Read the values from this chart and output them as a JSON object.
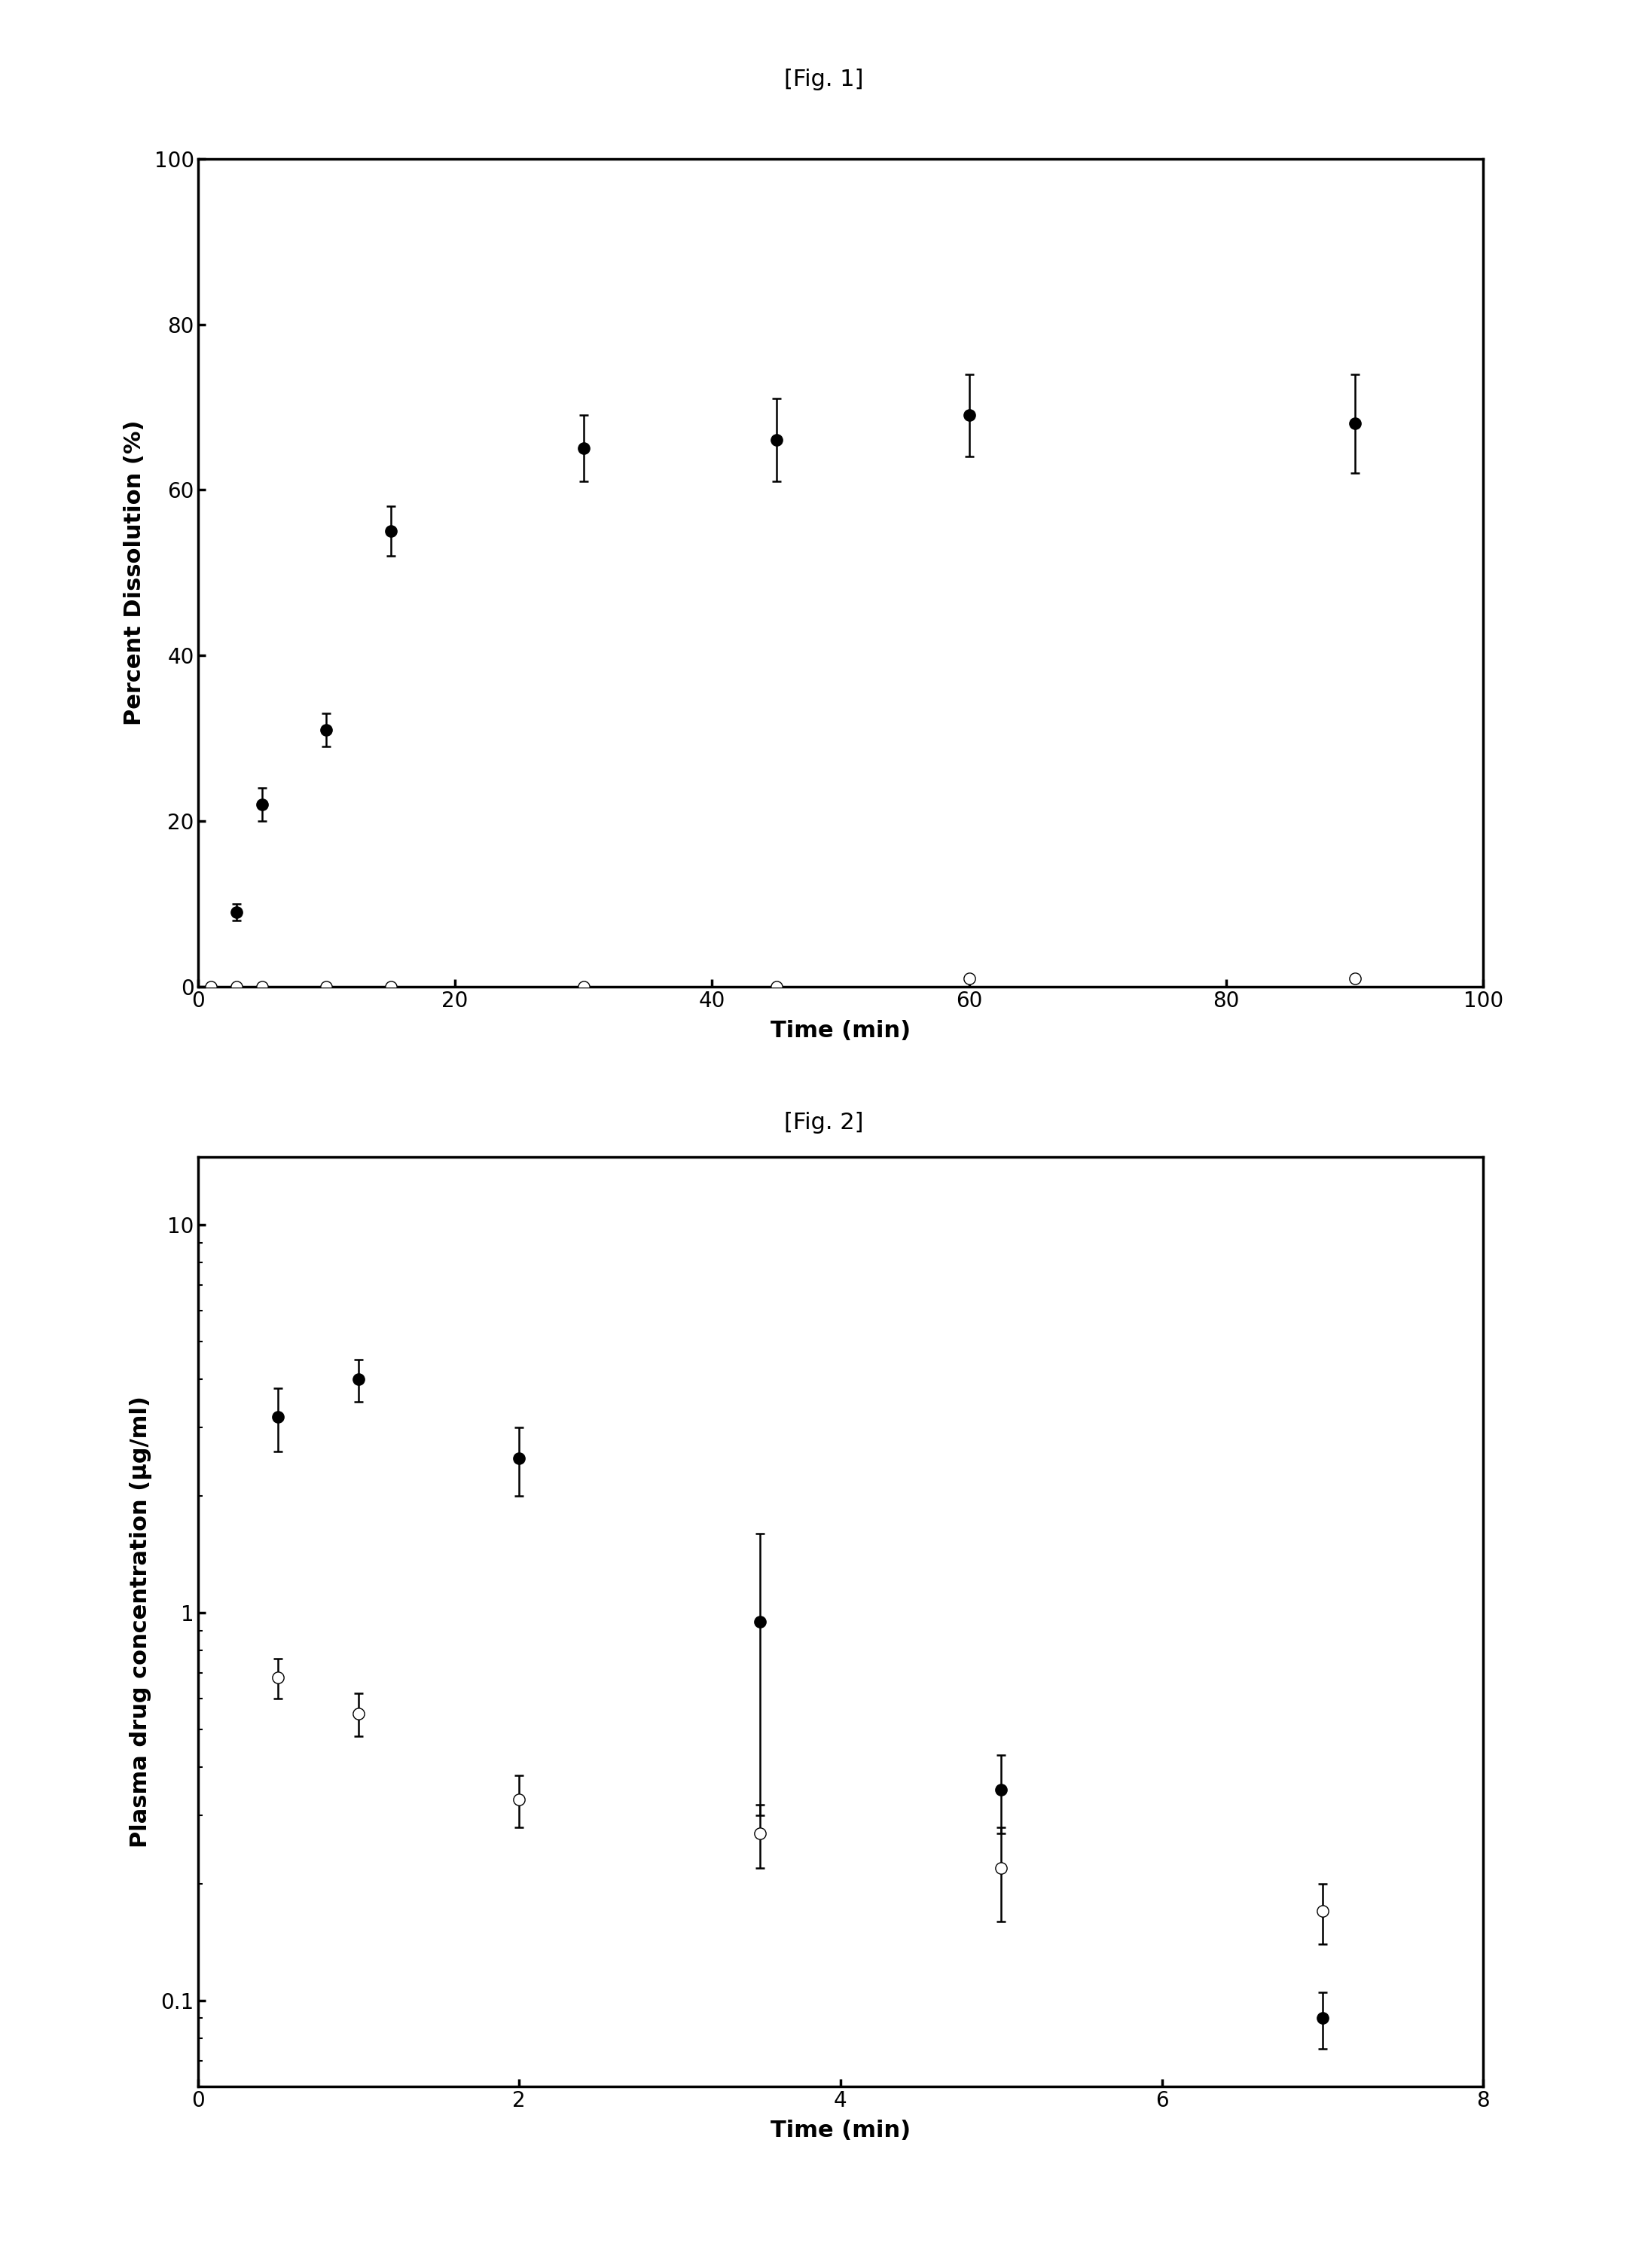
{
  "fig1": {
    "title": "[Fig. 1]",
    "xlabel": "Time (min)",
    "ylabel": "Percent Dissolution (%)",
    "xlim": [
      0,
      100
    ],
    "ylim": [
      0,
      100
    ],
    "xticks": [
      0,
      20,
      40,
      60,
      80,
      100
    ],
    "yticks": [
      0,
      20,
      40,
      60,
      80,
      100
    ],
    "filled_x": [
      3,
      5,
      10,
      15,
      30,
      45,
      60,
      90
    ],
    "filled_y": [
      9,
      22,
      31,
      55,
      65,
      66,
      69,
      68
    ],
    "filled_yerr": [
      1,
      2,
      2,
      3,
      4,
      5,
      5,
      6
    ],
    "open_x": [
      1,
      3,
      5,
      10,
      15,
      30,
      45,
      60,
      90
    ],
    "open_y": [
      0,
      0,
      0,
      0,
      0,
      0,
      0,
      1,
      1
    ],
    "open_yerr": [
      0,
      0,
      0,
      0,
      0,
      0,
      0,
      0,
      0
    ]
  },
  "fig2": {
    "title": "[Fig. 2]",
    "xlabel": "Time (min)",
    "ylabel": "Plasma drug concentration (μg/ml)",
    "xlim": [
      0,
      8
    ],
    "ylim_log": [
      0.06,
      15
    ],
    "xticks": [
      0,
      2,
      4,
      6,
      8
    ],
    "yticks_log": [
      0.1,
      1,
      10
    ],
    "ytick_labels": [
      "0.1",
      "1",
      "10"
    ],
    "filled_x": [
      0.5,
      1.0,
      2.0,
      3.5,
      5.0,
      7.0
    ],
    "filled_y": [
      3.2,
      4.0,
      2.5,
      0.95,
      0.35,
      0.09
    ],
    "filled_yerr": [
      0.6,
      0.5,
      0.5,
      0.65,
      0.08,
      0.015
    ],
    "open_x": [
      0.5,
      1.0,
      2.0,
      3.5,
      5.0,
      7.0
    ],
    "open_y": [
      0.68,
      0.55,
      0.33,
      0.27,
      0.22,
      0.17
    ],
    "open_yerr": [
      0.08,
      0.07,
      0.05,
      0.05,
      0.06,
      0.03
    ]
  },
  "background_color": "#ffffff",
  "marker_size": 11,
  "linewidth": 2.5,
  "elinewidth": 1.8,
  "capsize": 4,
  "capthick": 1.8
}
